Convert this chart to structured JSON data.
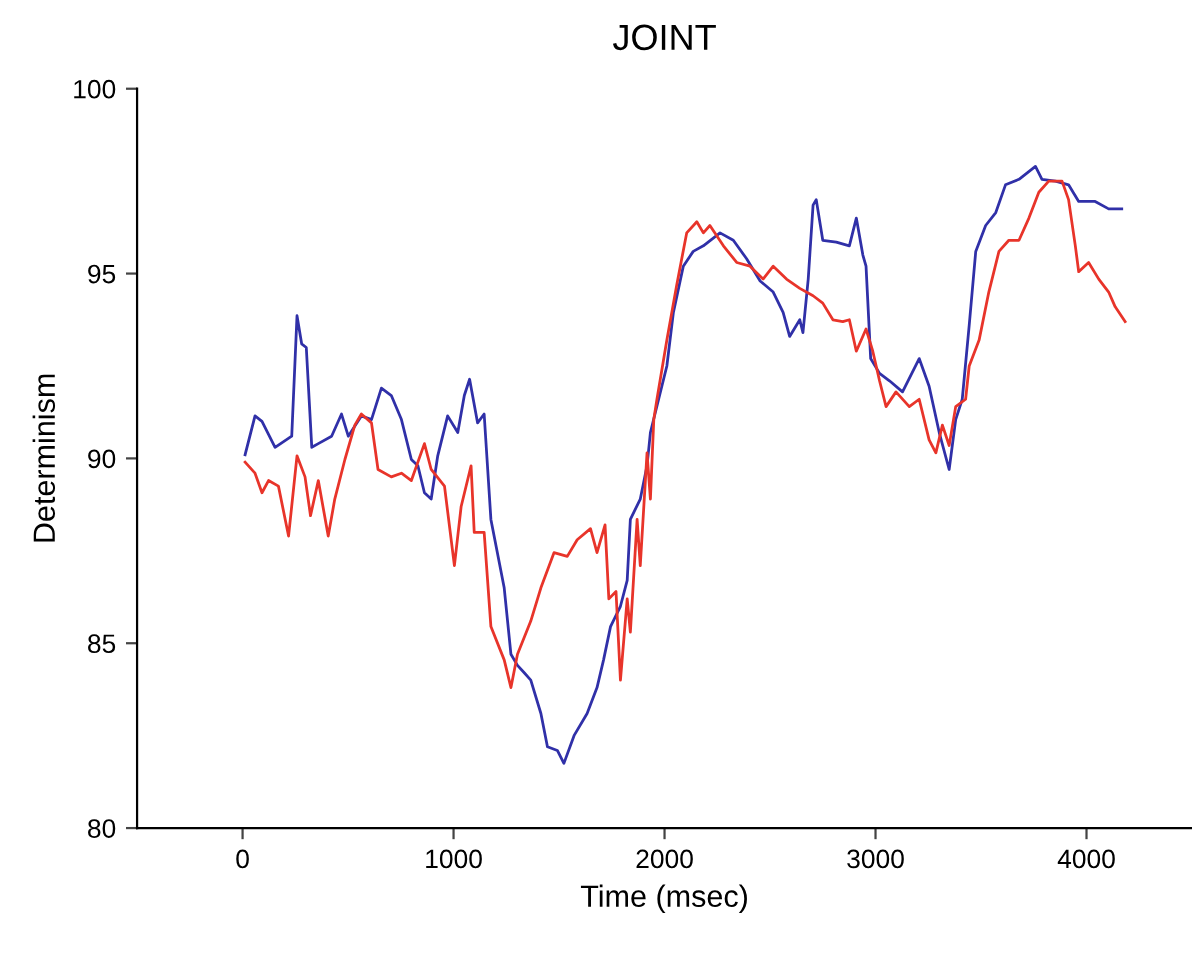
{
  "chart_data": {
    "type": "line",
    "title": "JOINT",
    "xlabel": "Time (msec)",
    "ylabel": "Determinism",
    "xlim": [
      -500,
      4500
    ],
    "xticks": [
      0,
      1000,
      2000,
      3000,
      4000
    ],
    "ylim": [
      80,
      100
    ],
    "yticks": [
      80,
      85,
      90,
      95,
      100
    ],
    "grid": false,
    "marker": "none",
    "line_style": "solid",
    "series": [
      {
        "color": "#3030a8",
        "x": [
          12,
          59,
          92,
          154,
          233,
          258,
          280,
          302,
          328,
          359,
          422,
          469,
          501,
          563,
          611,
          658,
          705,
          753,
          800,
          831,
          862,
          894,
          925,
          972,
          1020,
          1051,
          1076,
          1114,
          1145,
          1177,
          1240,
          1272,
          1303,
          1335,
          1366,
          1414,
          1445,
          1492,
          1523,
          1571,
          1633,
          1680,
          1711,
          1744,
          1791,
          1823,
          1838,
          1885,
          1917,
          1933,
          2011,
          2042,
          2089,
          2136,
          2184,
          2263,
          2326,
          2389,
          2453,
          2515,
          2562,
          2593,
          2641,
          2656,
          2681,
          2704,
          2719,
          2750,
          2814,
          2876,
          2909,
          2940,
          2955,
          2977,
          3019,
          3066,
          3128,
          3207,
          3254,
          3302,
          3349,
          3380,
          3411,
          3444,
          3475,
          3522,
          3570,
          3616,
          3680,
          3758,
          3789,
          3853,
          3915,
          3963,
          4041,
          4105,
          4167
        ],
        "values": [
          90.1,
          91.15,
          91.0,
          90.3,
          90.6,
          93.86,
          93.1,
          93.0,
          90.3,
          90.4,
          90.6,
          91.2,
          90.6,
          91.15,
          91.05,
          91.9,
          91.7,
          91.05,
          89.97,
          89.8,
          89.07,
          88.9,
          90.07,
          91.15,
          90.7,
          91.7,
          92.14,
          90.96,
          91.2,
          88.35,
          86.5,
          84.7,
          84.4,
          84.2,
          84.0,
          83.1,
          82.2,
          82.1,
          81.75,
          82.5,
          83.1,
          83.8,
          84.55,
          85.45,
          86.0,
          86.7,
          88.35,
          88.9,
          89.8,
          90.7,
          92.5,
          93.95,
          95.2,
          95.6,
          95.75,
          96.1,
          95.9,
          95.4,
          94.8,
          94.5,
          93.95,
          93.3,
          93.75,
          93.4,
          94.85,
          96.85,
          97.0,
          95.9,
          95.85,
          95.75,
          96.5,
          95.5,
          95.2,
          92.7,
          92.3,
          92.1,
          91.8,
          92.7,
          91.95,
          90.7,
          89.7,
          91.05,
          91.6,
          93.6,
          95.6,
          96.3,
          96.65,
          97.4,
          97.55,
          97.9,
          97.55,
          97.5,
          97.4,
          96.95,
          96.95,
          96.75,
          96.75
        ]
      },
      {
        "color": "#e8342a",
        "x": [
          12,
          59,
          92,
          123,
          170,
          218,
          258,
          296,
          322,
          359,
          406,
          437,
          485,
          532,
          563,
          611,
          642,
          705,
          753,
          800,
          862,
          894,
          957,
          1004,
          1036,
          1083,
          1098,
          1145,
          1177,
          1240,
          1272,
          1303,
          1366,
          1414,
          1476,
          1539,
          1586,
          1649,
          1680,
          1718,
          1736,
          1770,
          1791,
          1823,
          1838,
          1870,
          1885,
          1917,
          1933,
          1949,
          1964,
          2011,
          2058,
          2105,
          2153,
          2184,
          2215,
          2279,
          2342,
          2405,
          2467,
          2515,
          2578,
          2641,
          2704,
          2750,
          2798,
          2845,
          2876,
          2909,
          2955,
          2987,
          3019,
          3050,
          3097,
          3160,
          3207,
          3254,
          3286,
          3317,
          3349,
          3380,
          3427,
          3444,
          3491,
          3537,
          3585,
          3632,
          3680,
          3727,
          3774,
          3821,
          3884,
          3915,
          3947,
          3963,
          4010,
          4058,
          4105,
          4136,
          4183
        ],
        "values": [
          89.9,
          89.6,
          89.07,
          89.4,
          89.25,
          87.9,
          90.07,
          89.5,
          88.45,
          89.4,
          87.9,
          88.9,
          89.97,
          90.9,
          91.2,
          90.96,
          89.7,
          89.5,
          89.6,
          89.4,
          90.4,
          89.7,
          89.25,
          87.1,
          88.7,
          89.8,
          88.0,
          88.0,
          85.45,
          84.55,
          83.8,
          84.7,
          85.6,
          86.5,
          87.45,
          87.35,
          87.8,
          88.1,
          87.45,
          88.2,
          86.2,
          86.4,
          84.0,
          86.2,
          85.3,
          88.35,
          87.1,
          90.15,
          88.9,
          91.05,
          91.6,
          93.2,
          94.7,
          96.1,
          96.4,
          96.1,
          96.3,
          95.75,
          95.3,
          95.2,
          94.85,
          95.2,
          94.85,
          94.6,
          94.4,
          94.2,
          93.75,
          93.7,
          93.75,
          92.9,
          93.5,
          92.9,
          92.1,
          91.4,
          91.8,
          91.4,
          91.6,
          90.5,
          90.15,
          90.9,
          90.35,
          91.4,
          91.6,
          92.5,
          93.2,
          94.5,
          95.6,
          95.9,
          95.9,
          96.5,
          97.2,
          97.5,
          97.5,
          97.0,
          95.75,
          95.05,
          95.3,
          94.85,
          94.5,
          94.1,
          93.7
        ]
      }
    ]
  }
}
